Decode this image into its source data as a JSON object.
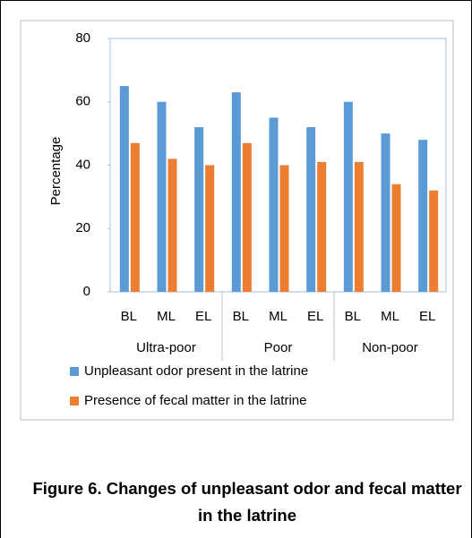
{
  "chart_data": {
    "type": "bar",
    "caption": "Figure 6. Changes of unpleasant odor and fecal matter in the latrine",
    "y_label": "Percentage",
    "categories": [
      "BL",
      "ML",
      "EL",
      "BL",
      "ML",
      "EL",
      "BL",
      "ML",
      "EL"
    ],
    "groups": [
      "Ultra-poor",
      "Poor",
      "Non-poor"
    ],
    "series": [
      {
        "name": "Unpleasant odor present in the latrine",
        "color": "#5b9bd5",
        "values": [
          65,
          60,
          52,
          63,
          55,
          52,
          60,
          50,
          48
        ]
      },
      {
        "name": "Presence of fecal matter in the latrine",
        "color": "#ed7d31",
        "values": [
          47,
          42,
          40,
          47,
          40,
          41,
          41,
          34,
          32
        ]
      }
    ],
    "ylim": [
      0,
      80
    ],
    "yticks": [
      0,
      20,
      40,
      60,
      80
    ],
    "grid": false
  }
}
